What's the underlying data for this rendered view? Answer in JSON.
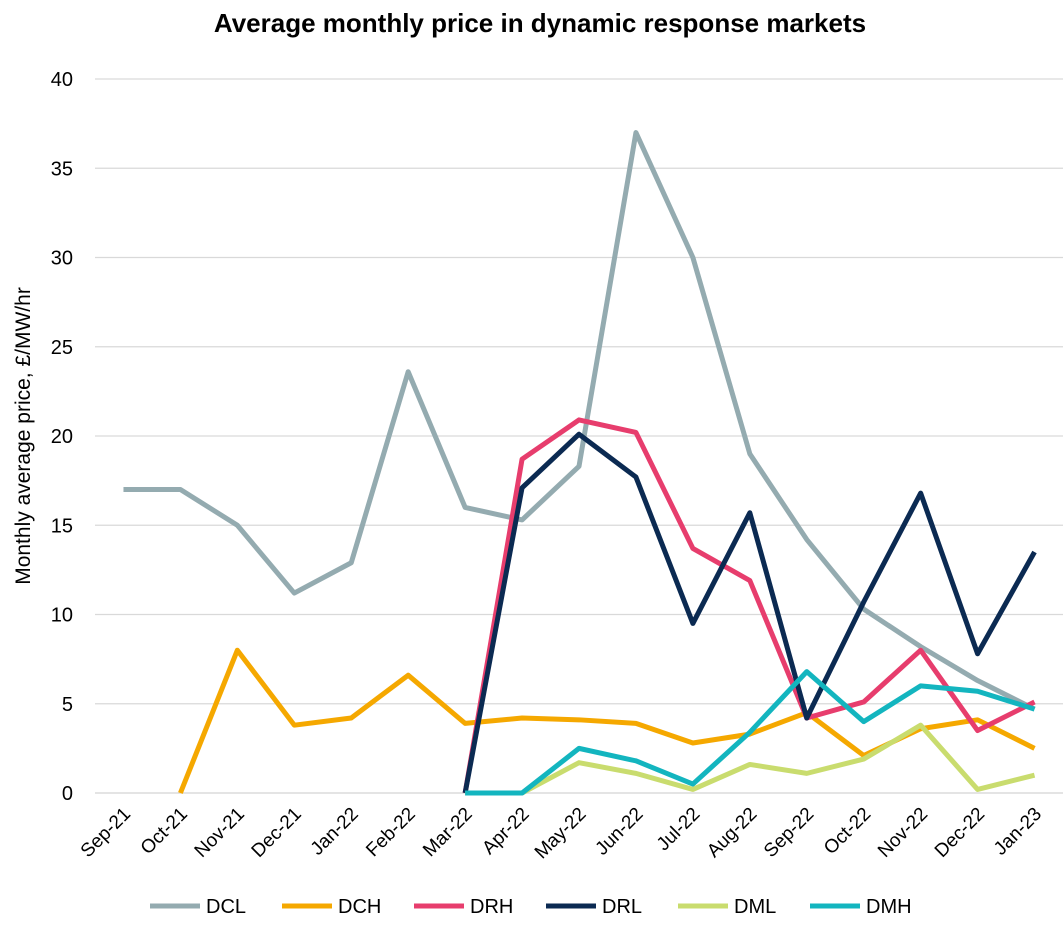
{
  "chart_data": {
    "type": "line",
    "title": "Average monthly price in dynamic response markets",
    "y_label": "Monthly average price, £/MW/hr",
    "categories": [
      "Sep-21",
      "Oct-21",
      "Nov-21",
      "Dec-21",
      "Jan-22",
      "Feb-22",
      "Mar-22",
      "Apr-22",
      "May-22",
      "Jun-22",
      "Jul-22",
      "Aug-22",
      "Sep-22",
      "Oct-22",
      "Nov-22",
      "Dec-22",
      "Jan-23"
    ],
    "series": [
      {
        "name": "DCL",
        "color": "#94abb0",
        "values": [
          17,
          17,
          15,
          11.2,
          12.9,
          23.6,
          16,
          15.3,
          18.3,
          37,
          30,
          19,
          14.2,
          10.3,
          8.2,
          6.3,
          4.7
        ]
      },
      {
        "name": "DCH",
        "color": "#f5a800",
        "values": [
          null,
          0,
          8,
          3.8,
          4.2,
          6.6,
          3.9,
          4.2,
          4.1,
          3.9,
          2.8,
          3.3,
          4.5,
          2.1,
          3.6,
          4.1,
          2.5
        ]
      },
      {
        "name": "DRH",
        "color": "#e73d6d",
        "values": [
          null,
          null,
          null,
          null,
          null,
          null,
          0,
          18.7,
          20.9,
          20.2,
          13.7,
          11.9,
          4.2,
          5.1,
          8,
          3.5,
          5.1
        ]
      },
      {
        "name": "DRL",
        "color": "#0b2a52",
        "values": [
          null,
          null,
          null,
          null,
          null,
          null,
          0,
          17.1,
          20.1,
          17.7,
          9.5,
          15.7,
          4.2,
          10.7,
          16.8,
          7.8,
          13.5
        ]
      },
      {
        "name": "DML",
        "color": "#c9dc6e",
        "values": [
          null,
          null,
          null,
          null,
          null,
          null,
          0,
          0,
          1.7,
          1.1,
          0.2,
          1.6,
          1.1,
          1.9,
          3.8,
          0.2,
          1.0
        ]
      },
      {
        "name": "DMH",
        "color": "#13b5bf",
        "values": [
          null,
          null,
          null,
          null,
          null,
          null,
          0,
          0,
          2.5,
          1.8,
          0.5,
          3.4,
          6.8,
          4.0,
          6.0,
          5.7,
          4.7
        ]
      }
    ],
    "ylim": [
      0,
      40
    ],
    "yticks": [
      0,
      5,
      10,
      15,
      20,
      25,
      30,
      35,
      40
    ],
    "grid": true,
    "legend": "bottom"
  }
}
